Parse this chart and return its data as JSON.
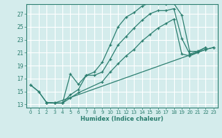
{
  "xlabel": "Humidex (Indice chaleur)",
  "bg_color": "#d4ecec",
  "grid_color": "#ffffff",
  "line_color": "#2a7d6e",
  "xlim": [
    -0.5,
    23.5
  ],
  "ylim": [
    12.5,
    28.5
  ],
  "yticks": [
    13,
    15,
    17,
    19,
    21,
    23,
    25,
    27
  ],
  "xticks": [
    0,
    1,
    2,
    3,
    4,
    5,
    6,
    7,
    8,
    9,
    10,
    11,
    12,
    13,
    14,
    15,
    16,
    17,
    18,
    19,
    20,
    21,
    22,
    23
  ],
  "line1_x": [
    0,
    1,
    2,
    3,
    4,
    5,
    6,
    7,
    8,
    9,
    10,
    11,
    12,
    13,
    14,
    15,
    16,
    17,
    18,
    19,
    20,
    21,
    22
  ],
  "line1_y": [
    16.0,
    15.0,
    13.3,
    13.2,
    13.2,
    17.7,
    16.1,
    17.5,
    18.0,
    19.5,
    22.2,
    25.0,
    26.5,
    27.2,
    28.2,
    28.7,
    28.6,
    28.5,
    28.6,
    26.8,
    21.2,
    21.2,
    21.8
  ],
  "line2_x": [
    0,
    1,
    2,
    3,
    4,
    5,
    6,
    7,
    8,
    9,
    10,
    11,
    12,
    13,
    14,
    15,
    16,
    17,
    18,
    19,
    20,
    21,
    22
  ],
  "line2_y": [
    16.0,
    15.0,
    13.3,
    13.2,
    13.2,
    14.5,
    15.3,
    17.5,
    17.5,
    18.0,
    20.0,
    22.2,
    23.5,
    24.8,
    26.0,
    27.0,
    27.5,
    27.5,
    27.8,
    23.2,
    20.8,
    21.2,
    21.8
  ],
  "line3_x": [
    2,
    3,
    4,
    5,
    6,
    9,
    10,
    11,
    12,
    13,
    14,
    15,
    16,
    17,
    18,
    19,
    20,
    21,
    22,
    23
  ],
  "line3_y": [
    13.3,
    13.2,
    13.2,
    14.0,
    14.8,
    16.5,
    18.0,
    19.3,
    20.5,
    21.5,
    22.8,
    23.8,
    24.8,
    25.5,
    26.2,
    20.8,
    20.5,
    21.0,
    21.5,
    21.8
  ],
  "line4_x": [
    2,
    3,
    22,
    23
  ],
  "line4_y": [
    13.3,
    13.2,
    21.5,
    21.8
  ]
}
